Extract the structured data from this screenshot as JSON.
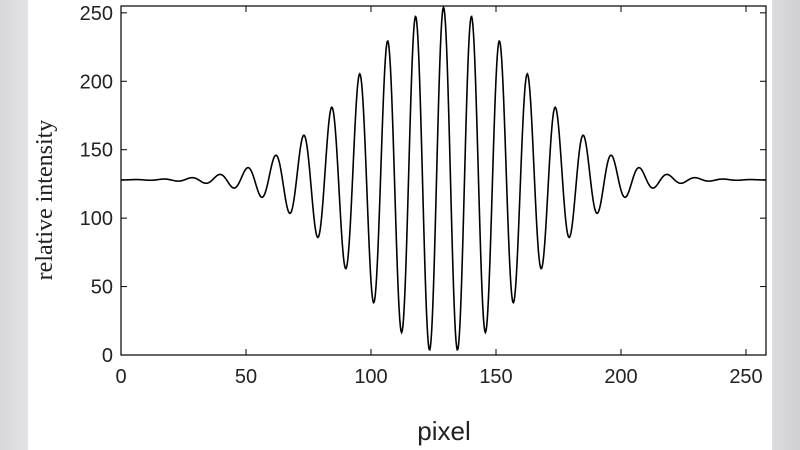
{
  "chart_data": {
    "type": "line",
    "title": "",
    "xlabel": "pixel",
    "ylabel": "relative intensity",
    "xlim": [
      0,
      258
    ],
    "ylim": [
      0,
      255
    ],
    "xticks": [
      0,
      50,
      100,
      150,
      200,
      250
    ],
    "yticks": [
      0,
      50,
      100,
      150,
      200,
      250
    ],
    "grid": false,
    "series": [
      {
        "line_color": "#000000",
        "model": {
          "baseline": 128,
          "center_x": 129,
          "envelope_sigma": 34,
          "peak_amplitude": 126,
          "period": 11.2
        }
      }
    ]
  }
}
